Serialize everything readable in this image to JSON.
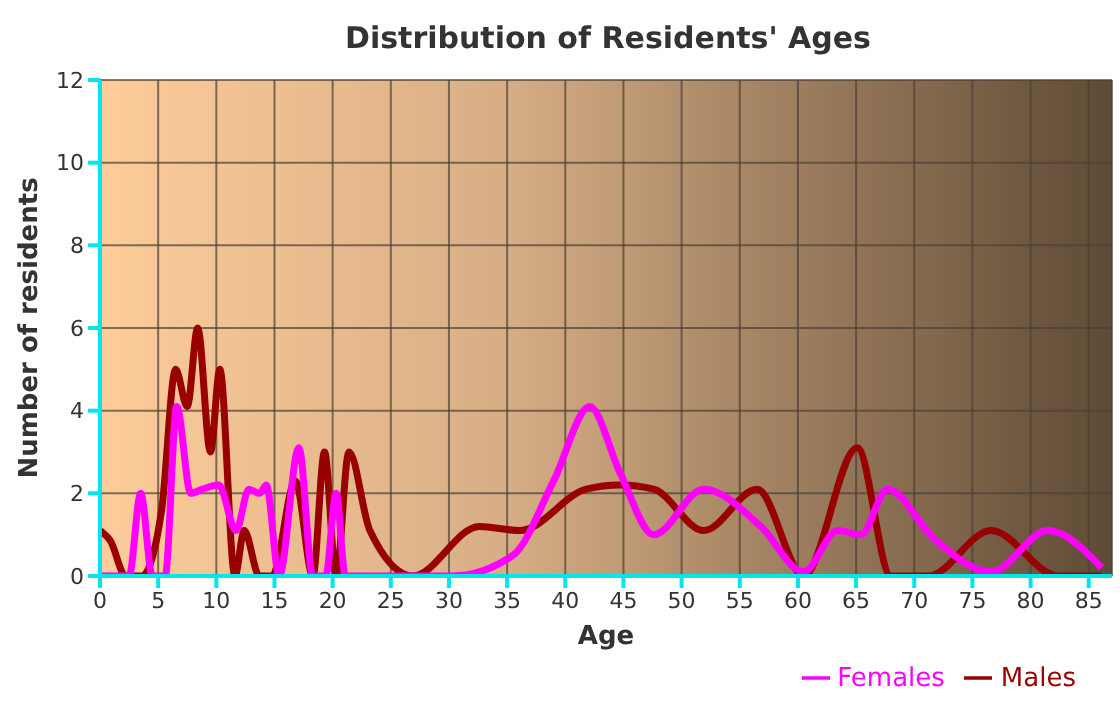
{
  "chart_data": {
    "type": "line",
    "title": "Distribution of Residents' Ages",
    "xlabel": "Age",
    "ylabel": "Number of residents",
    "xlim": [
      0,
      87
    ],
    "xticks": [
      0,
      5,
      10,
      15,
      20,
      25,
      30,
      35,
      40,
      45,
      50,
      55,
      60,
      65,
      70,
      75,
      80,
      85
    ],
    "ylim": [
      0,
      12
    ],
    "yticks": [
      0,
      2,
      4,
      6,
      8,
      10,
      12
    ],
    "grid": true,
    "legend": "bottom right",
    "marker": "none",
    "line_style": "solid",
    "series": [
      {
        "name": "Males",
        "color": "#990000",
        "x": [
          0,
          0.9,
          2.2,
          3.6,
          5.3,
          6.5,
          7.5,
          8.4,
          9.5,
          10.3,
          11.6,
          12.4,
          13.7,
          14.8,
          16.8,
          18.3,
          19.3,
          20.3,
          21.4,
          23.2,
          26.9,
          32.6,
          36.1,
          41.8,
          44.7,
          47.6,
          51.9,
          56.5,
          60.5,
          65.1,
          68,
          71.2,
          76.6,
          82.4,
          86.1
        ],
        "values": [
          1.1,
          0.85,
          0,
          0,
          1.6,
          5,
          4.1,
          6,
          3,
          5,
          0,
          1.1,
          0,
          0,
          2.3,
          0,
          3,
          0,
          3,
          1.1,
          0,
          1.2,
          1.1,
          2.1,
          2.2,
          2.1,
          1.1,
          2.1,
          0,
          3.1,
          0,
          0,
          1.1,
          0,
          0
        ]
      },
      {
        "name": "Females",
        "color": "#ff00ff",
        "x": [
          0,
          2.5,
          3.5,
          4.5,
          5.6,
          6.6,
          7.8,
          8.8,
          10.2,
          11.7,
          12.8,
          13.7,
          14.3,
          15.4,
          17.1,
          18.3,
          19.4,
          20.3,
          21.1,
          30.3,
          35.5,
          39,
          42.1,
          44.7,
          47.6,
          51.9,
          56.8,
          60.5,
          63.4,
          65.4,
          67.7,
          71.7,
          76.6,
          81.5,
          86.1
        ],
        "values": [
          0,
          0,
          2,
          0,
          0,
          4.1,
          2,
          2.1,
          2.2,
          1.1,
          2.1,
          2,
          2.2,
          0,
          3.1,
          0,
          0,
          2,
          0,
          0,
          0.5,
          2.3,
          4.1,
          2.5,
          1,
          2.1,
          1.2,
          0.1,
          1.1,
          1,
          2.1,
          0.9,
          0.1,
          1.1,
          0.2
        ]
      }
    ]
  }
}
